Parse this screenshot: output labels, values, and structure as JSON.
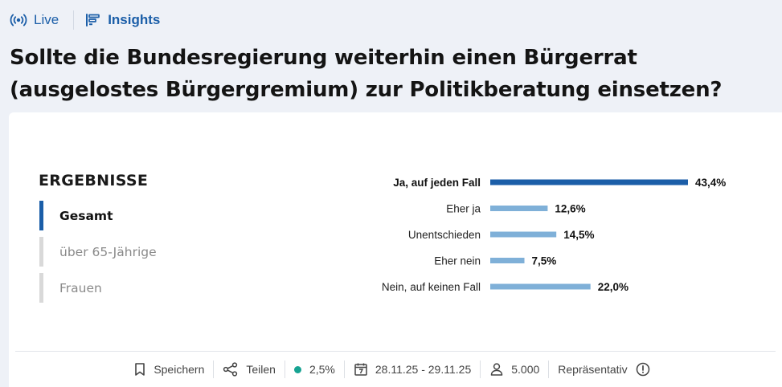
{
  "nav": {
    "live_label": "Live",
    "insights_label": "Insights"
  },
  "question": "Sollte die Bundesregierung weiterhin einen Bürgerrat (ausgelostes Bürgergremium) zur Politikberatung einsetzen?",
  "results": {
    "heading": "ERGEBNISSE",
    "filters": [
      {
        "label": "Gesamt",
        "active": true
      },
      {
        "label": "über 65-Jährige",
        "active": false
      },
      {
        "label": "Frauen",
        "active": false
      }
    ]
  },
  "chart_data": {
    "type": "bar",
    "orientation": "horizontal",
    "categories": [
      "Ja, auf jeden Fall",
      "Eher ja",
      "Unentschieden",
      "Eher nein",
      "Nein, auf keinen Fall"
    ],
    "values": [
      43.4,
      12.6,
      14.5,
      7.5,
      22.0
    ],
    "value_labels": [
      "43,4%",
      "12,6%",
      "14,5%",
      "7,5%",
      "22,0%"
    ],
    "highlight_index": 0,
    "xlim": [
      0,
      43.4
    ],
    "colors": {
      "highlight": "#1b5ea8",
      "default": "#7fb0d8"
    }
  },
  "footer": {
    "save_label": "Speichern",
    "share_label": "Teilen",
    "margin_label": "2,5%",
    "date_range": "28.11.25 - 29.11.25",
    "respondents": "5.000",
    "representative_label": "Repräsentativ"
  }
}
